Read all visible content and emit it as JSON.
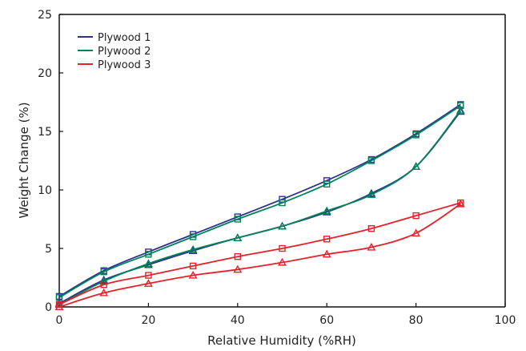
{
  "chart_data": {
    "type": "line",
    "title": "",
    "xlabel": "Relative Humidity (%RH)",
    "ylabel": "Weight Change (%)",
    "xlim": [
      0,
      100
    ],
    "ylim": [
      0,
      25
    ],
    "xticks": [
      0,
      20,
      40,
      60,
      80,
      100
    ],
    "yticks": [
      0,
      5,
      10,
      15,
      20,
      25
    ],
    "grid": false,
    "legend_position": "top-left",
    "series": [
      {
        "name": "Plywood 1",
        "color": "#2e3192",
        "sorption": {
          "marker": "square",
          "x": [
            0,
            10,
            20,
            30,
            40,
            50,
            60,
            70,
            80,
            90
          ],
          "y": [
            0.9,
            3.1,
            4.7,
            6.2,
            7.7,
            9.2,
            10.8,
            12.6,
            14.8,
            17.3
          ]
        },
        "desorption": {
          "marker": "triangle",
          "x": [
            0,
            10,
            20,
            30,
            40,
            50,
            60,
            70,
            80,
            90
          ],
          "y": [
            0.3,
            2.3,
            3.6,
            4.8,
            5.9,
            6.9,
            8.1,
            9.7,
            12.0,
            16.7
          ]
        }
      },
      {
        "name": "Plywood 2",
        "color": "#00835b",
        "sorption": {
          "marker": "square",
          "x": [
            0,
            10,
            20,
            30,
            40,
            50,
            60,
            70,
            80,
            90
          ],
          "y": [
            0.8,
            3.0,
            4.5,
            6.0,
            7.5,
            8.9,
            10.5,
            12.5,
            14.7,
            17.2
          ]
        },
        "desorption": {
          "marker": "triangle",
          "x": [
            0,
            10,
            20,
            30,
            40,
            50,
            60,
            70,
            80,
            90
          ],
          "y": [
            0.2,
            2.2,
            3.7,
            4.9,
            5.9,
            6.9,
            8.2,
            9.6,
            12.0,
            16.8
          ]
        }
      },
      {
        "name": "Plywood 3",
        "color": "#e8202a",
        "sorption": {
          "marker": "square",
          "x": [
            0,
            10,
            20,
            30,
            40,
            50,
            60,
            70,
            80,
            90
          ],
          "y": [
            0.2,
            1.9,
            2.7,
            3.5,
            4.3,
            5.0,
            5.8,
            6.7,
            7.8,
            8.9
          ]
        },
        "desorption": {
          "marker": "triangle",
          "x": [
            0,
            10,
            20,
            30,
            40,
            50,
            60,
            70,
            80,
            90
          ],
          "y": [
            0.0,
            1.2,
            2.0,
            2.7,
            3.2,
            3.8,
            4.5,
            5.1,
            6.3,
            8.8
          ]
        }
      }
    ]
  }
}
